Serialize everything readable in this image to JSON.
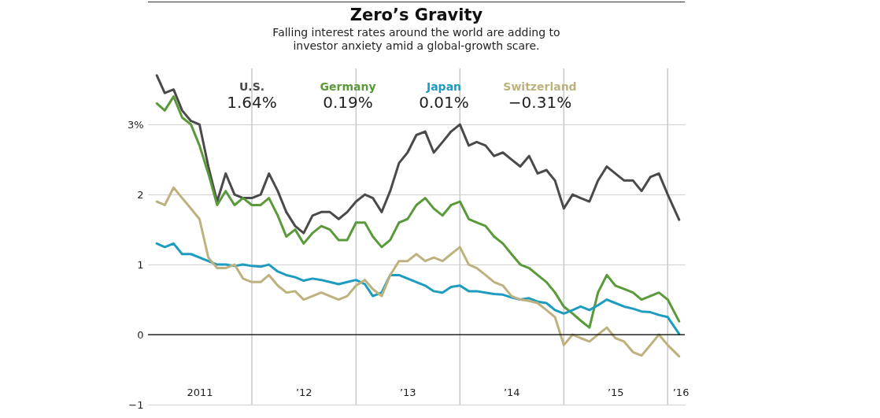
{
  "chart_data": {
    "type": "line",
    "title": "Zero’s Gravity",
    "subtitle": "Falling interest rates around the world are adding to investor anxiety amid a global-growth scare.",
    "x": [
      "2011-02",
      "2011-03",
      "2011-04",
      "2011-05",
      "2011-06",
      "2011-07",
      "2011-08",
      "2011-09",
      "2011-10",
      "2011-11",
      "2011-12",
      "2012-01",
      "2012-02",
      "2012-03",
      "2012-04",
      "2012-05",
      "2012-06",
      "2012-07",
      "2012-08",
      "2012-09",
      "2012-10",
      "2012-11",
      "2012-12",
      "2013-01",
      "2013-02",
      "2013-03",
      "2013-04",
      "2013-05",
      "2013-06",
      "2013-07",
      "2013-08",
      "2013-09",
      "2013-10",
      "2013-11",
      "2013-12",
      "2014-01",
      "2014-02",
      "2014-03",
      "2014-04",
      "2014-05",
      "2014-06",
      "2014-07",
      "2014-08",
      "2014-09",
      "2014-10",
      "2014-11",
      "2014-12",
      "2015-01",
      "2015-02",
      "2015-03",
      "2015-04",
      "2015-05",
      "2015-06",
      "2015-07",
      "2015-08",
      "2015-09",
      "2015-10",
      "2015-11",
      "2015-12",
      "2016-01",
      "2016-02-10"
    ],
    "series": [
      {
        "name": "U.S.",
        "color": "#4a4a4a",
        "values": [
          3.7,
          3.45,
          3.5,
          3.2,
          3.05,
          3.0,
          2.4,
          1.9,
          2.3,
          2.0,
          1.95,
          1.95,
          2.0,
          2.3,
          2.05,
          1.75,
          1.55,
          1.45,
          1.7,
          1.75,
          1.75,
          1.65,
          1.75,
          1.9,
          2.0,
          1.95,
          1.75,
          2.05,
          2.45,
          2.6,
          2.85,
          2.9,
          2.6,
          2.75,
          2.9,
          3.0,
          2.7,
          2.75,
          2.7,
          2.55,
          2.6,
          2.5,
          2.4,
          2.55,
          2.3,
          2.35,
          2.2,
          1.8,
          2.0,
          1.95,
          1.9,
          2.2,
          2.4,
          2.3,
          2.2,
          2.2,
          2.05,
          2.25,
          2.3,
          2.0,
          1.64
        ]
      },
      {
        "name": "Germany",
        "color": "#5a9a3a",
        "values": [
          3.3,
          3.2,
          3.4,
          3.1,
          3.0,
          2.7,
          2.3,
          1.85,
          2.05,
          1.85,
          1.95,
          1.85,
          1.85,
          1.95,
          1.7,
          1.4,
          1.5,
          1.3,
          1.45,
          1.55,
          1.5,
          1.35,
          1.35,
          1.6,
          1.6,
          1.4,
          1.25,
          1.35,
          1.6,
          1.65,
          1.85,
          1.95,
          1.8,
          1.7,
          1.85,
          1.9,
          1.65,
          1.6,
          1.55,
          1.4,
          1.3,
          1.15,
          1.0,
          0.95,
          0.85,
          0.75,
          0.6,
          0.4,
          0.3,
          0.2,
          0.1,
          0.6,
          0.85,
          0.7,
          0.65,
          0.6,
          0.5,
          0.55,
          0.6,
          0.5,
          0.19
        ]
      },
      {
        "name": "Japan",
        "color": "#1e9cc0",
        "values": [
          1.3,
          1.25,
          1.3,
          1.15,
          1.15,
          1.1,
          1.05,
          1.0,
          1.0,
          0.98,
          1.0,
          0.98,
          0.97,
          1.0,
          0.9,
          0.85,
          0.82,
          0.77,
          0.8,
          0.78,
          0.75,
          0.72,
          0.75,
          0.78,
          0.72,
          0.55,
          0.6,
          0.85,
          0.85,
          0.8,
          0.75,
          0.7,
          0.62,
          0.6,
          0.68,
          0.7,
          0.62,
          0.62,
          0.6,
          0.58,
          0.57,
          0.53,
          0.5,
          0.52,
          0.47,
          0.45,
          0.35,
          0.3,
          0.35,
          0.4,
          0.35,
          0.42,
          0.5,
          0.45,
          0.4,
          0.37,
          0.33,
          0.32,
          0.28,
          0.25,
          0.01
        ]
      },
      {
        "name": "Switzerland",
        "color": "#bdb27e",
        "values": [
          1.9,
          1.85,
          2.1,
          1.95,
          1.8,
          1.65,
          1.1,
          0.95,
          0.95,
          1.0,
          0.8,
          0.75,
          0.75,
          0.85,
          0.7,
          0.6,
          0.62,
          0.5,
          0.55,
          0.6,
          0.55,
          0.5,
          0.55,
          0.7,
          0.78,
          0.65,
          0.55,
          0.85,
          1.05,
          1.05,
          1.15,
          1.05,
          1.1,
          1.05,
          1.15,
          1.25,
          1.0,
          0.95,
          0.85,
          0.75,
          0.7,
          0.55,
          0.5,
          0.48,
          0.45,
          0.35,
          0.25,
          -0.15,
          0.0,
          -0.05,
          -0.1,
          0.0,
          0.1,
          -0.05,
          -0.1,
          -0.25,
          -0.3,
          -0.15,
          0.0,
          -0.15,
          -0.31
        ]
      }
    ],
    "annotations": [
      "1.64%",
      "0.19%",
      "0.01%",
      "−0.31%"
    ],
    "xlim": [
      "2011-01-01",
      "2016-03-01"
    ],
    "xticks": [
      {
        "value": "2011-07-01",
        "label": "2011"
      },
      {
        "value": "2012-01-01",
        "label": null
      },
      {
        "value": "2012-07-01",
        "label": "’12"
      },
      {
        "value": "2013-01-01",
        "label": null
      },
      {
        "value": "2013-07-01",
        "label": "’13"
      },
      {
        "value": "2014-01-01",
        "label": null
      },
      {
        "value": "2014-07-01",
        "label": "’14"
      },
      {
        "value": "2015-01-01",
        "label": null
      },
      {
        "value": "2015-07-01",
        "label": "’15"
      },
      {
        "value": "2016-01-01",
        "label": null
      },
      {
        "value": "2016-02-15",
        "label": "’16"
      }
    ],
    "ylim": [
      -1,
      3.8
    ],
    "yticks": [
      {
        "value": -1,
        "label": "−1"
      },
      {
        "value": 0,
        "label": "0"
      },
      {
        "value": 1,
        "label": "1"
      },
      {
        "value": 2,
        "label": "2"
      },
      {
        "value": 3,
        "label": "3%"
      }
    ],
    "ref_lines": [
      {
        "axis": "y",
        "value": 0,
        "color": "#000000"
      }
    ],
    "grid": true,
    "legend": "top",
    "marker": "none",
    "line_style": "solid"
  }
}
